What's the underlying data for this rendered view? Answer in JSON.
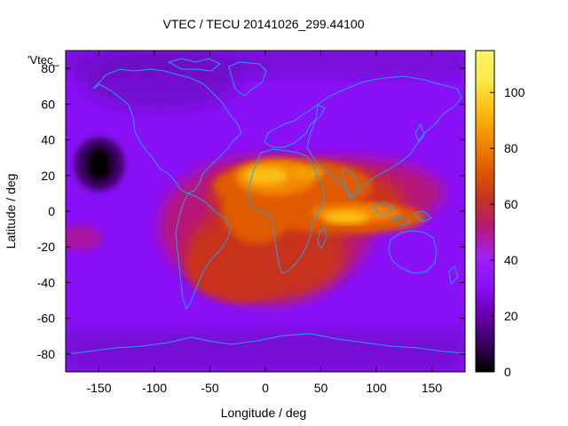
{
  "title": "VTEC / TECU 20141026_299.44100",
  "legend_key": "'Vtec_",
  "xlabel": "Longitude / deg",
  "ylabel": "Latitude / deg",
  "coastline_color": "#1fa2e8",
  "colormap": [
    "#000000",
    "#3a0062",
    "#6a00b0",
    "#8a10f8",
    "#a020f0",
    "#b6197a",
    "#c8331f",
    "#e05a00",
    "#f28a00",
    "#fbc012",
    "#ffe84a",
    "#fff56a"
  ],
  "chart_data": {
    "type": "heatmap",
    "title": "VTEC / TECU 20141026_299.44100",
    "xlabel": "Longitude / deg",
    "ylabel": "Latitude / deg",
    "xlim": [
      -180,
      180
    ],
    "ylim": [
      -90,
      90
    ],
    "xticks": [
      -150,
      -100,
      -50,
      0,
      50,
      100,
      150
    ],
    "yticks": [
      -80,
      -60,
      -40,
      -20,
      0,
      20,
      40,
      60,
      80
    ],
    "colorbar": {
      "min": 0,
      "max": 115,
      "ticks": [
        0,
        20,
        40,
        60,
        80,
        100
      ]
    },
    "grid": false,
    "features": [
      {
        "desc": "equatorial anomaly crest north",
        "lon": 20,
        "lat": 16,
        "vtec": 105
      },
      {
        "desc": "equatorial anomaly crest south",
        "lon": 85,
        "lat": -5,
        "vtec": 100
      },
      {
        "desc": "south atlantic enhancement",
        "lon": -20,
        "lat": -35,
        "vtec": 55
      },
      {
        "desc": "pacific minimum",
        "lon": -155,
        "lat": 25,
        "vtec": 2
      }
    ]
  }
}
